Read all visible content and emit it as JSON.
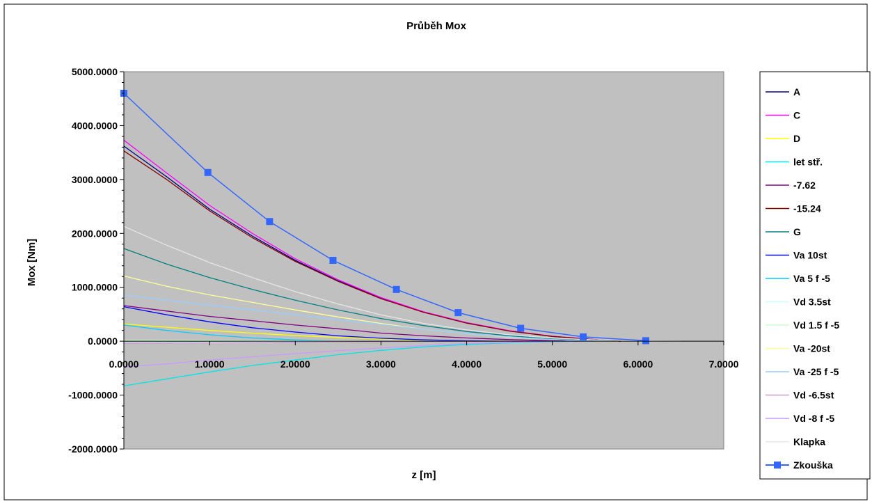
{
  "chart_data": {
    "type": "line",
    "title": "Průběh Mox",
    "xlabel": "z [m]",
    "ylabel": "Mox [Nm]",
    "xlim": [
      0,
      7
    ],
    "ylim": [
      -2000,
      5000
    ],
    "x_ticks": [
      "0.0000",
      "1.0000",
      "2.0000",
      "3.0000",
      "4.0000",
      "5.0000",
      "6.0000",
      "7.0000"
    ],
    "y_ticks": [
      "5000.0000",
      "4000.0000",
      "3000.0000",
      "2000.0000",
      "1000.0000",
      "0.0000",
      "-1000.0000",
      "-2000.0000"
    ],
    "plot_background": "#c0c0c0",
    "grid": false,
    "legend_position": "right",
    "series": [
      {
        "name": "A",
        "color": "#000080",
        "marker": false,
        "points": [
          [
            0,
            3620
          ],
          [
            0.5,
            3050
          ],
          [
            1.0,
            2450
          ],
          [
            1.5,
            1950
          ],
          [
            2.0,
            1500
          ],
          [
            2.5,
            1120
          ],
          [
            3.0,
            800
          ],
          [
            3.5,
            540
          ],
          [
            4.0,
            340
          ],
          [
            4.5,
            190
          ],
          [
            5.0,
            90
          ],
          [
            5.5,
            30
          ],
          [
            5.8,
            0
          ]
        ]
      },
      {
        "name": "C",
        "color": "#ff00ff",
        "marker": false,
        "points": [
          [
            0,
            3730
          ],
          [
            0.5,
            3120
          ],
          [
            1.0,
            2520
          ],
          [
            1.5,
            2000
          ],
          [
            2.0,
            1530
          ],
          [
            2.5,
            1140
          ],
          [
            3.0,
            810
          ],
          [
            3.5,
            545
          ],
          [
            4.0,
            345
          ],
          [
            4.5,
            195
          ],
          [
            5.0,
            92
          ],
          [
            5.5,
            30
          ],
          [
            5.8,
            0
          ]
        ]
      },
      {
        "name": "D",
        "color": "#ffff00",
        "marker": false,
        "points": [
          [
            0,
            320
          ],
          [
            0.5,
            260
          ],
          [
            1.0,
            200
          ],
          [
            1.5,
            150
          ],
          [
            2.0,
            105
          ],
          [
            2.5,
            70
          ],
          [
            3.0,
            40
          ],
          [
            3.5,
            20
          ],
          [
            4.0,
            8
          ],
          [
            4.5,
            0
          ]
        ]
      },
      {
        "name": "let stř.",
        "color": "#00e5e5",
        "marker": false,
        "points": [
          [
            0,
            -830
          ],
          [
            0.5,
            -700
          ],
          [
            1.0,
            -570
          ],
          [
            1.5,
            -450
          ],
          [
            2.0,
            -350
          ],
          [
            2.5,
            -250
          ],
          [
            3.0,
            -170
          ],
          [
            3.5,
            -105
          ],
          [
            4.0,
            -60
          ],
          [
            4.5,
            -30
          ],
          [
            5.0,
            -10
          ],
          [
            5.3,
            0
          ]
        ]
      },
      {
        "name": "-7.62",
        "color": "#800080",
        "marker": false,
        "points": [
          [
            0,
            660
          ],
          [
            0.5,
            560
          ],
          [
            1.0,
            460
          ],
          [
            1.5,
            380
          ],
          [
            2.0,
            300
          ],
          [
            2.5,
            230
          ],
          [
            3.0,
            150
          ],
          [
            3.5,
            100
          ],
          [
            4.0,
            60
          ],
          [
            4.5,
            30
          ],
          [
            5.0,
            10
          ],
          [
            5.3,
            0
          ]
        ]
      },
      {
        "name": "-15.24",
        "color": "#800000",
        "marker": false,
        "points": [
          [
            0,
            3530
          ],
          [
            0.5,
            3000
          ],
          [
            1.0,
            2420
          ],
          [
            1.5,
            1920
          ],
          [
            2.0,
            1480
          ],
          [
            2.5,
            1110
          ],
          [
            3.0,
            790
          ],
          [
            3.5,
            535
          ],
          [
            4.0,
            335
          ],
          [
            4.5,
            188
          ],
          [
            5.0,
            88
          ],
          [
            5.5,
            28
          ],
          [
            5.8,
            0
          ]
        ]
      },
      {
        "name": "G",
        "color": "#008080",
        "marker": false,
        "points": [
          [
            0,
            1720
          ],
          [
            0.5,
            1430
          ],
          [
            1.0,
            1180
          ],
          [
            1.5,
            960
          ],
          [
            2.0,
            760
          ],
          [
            2.5,
            580
          ],
          [
            3.0,
            420
          ],
          [
            3.5,
            290
          ],
          [
            4.0,
            180
          ],
          [
            4.5,
            100
          ],
          [
            5.0,
            40
          ],
          [
            5.5,
            10
          ],
          [
            5.7,
            0
          ]
        ]
      },
      {
        "name": "Va 10st",
        "color": "#0000ff",
        "marker": false,
        "points": [
          [
            0,
            640
          ],
          [
            0.5,
            490
          ],
          [
            1.0,
            360
          ],
          [
            1.5,
            250
          ],
          [
            2.0,
            170
          ],
          [
            2.5,
            100
          ],
          [
            3.0,
            55
          ],
          [
            3.5,
            25
          ],
          [
            4.0,
            8
          ],
          [
            4.5,
            0
          ]
        ]
      },
      {
        "name": "Va 5 f -5",
        "color": "#00ccff",
        "marker": false,
        "points": [
          [
            0,
            300
          ],
          [
            0.5,
            200
          ],
          [
            1.0,
            120
          ],
          [
            1.5,
            60
          ],
          [
            2.0,
            25
          ],
          [
            2.5,
            5
          ],
          [
            3.0,
            0
          ]
        ]
      },
      {
        "name": "Vd 3.5st",
        "color": "#ccffff",
        "marker": false,
        "points": [
          [
            0,
            -30
          ],
          [
            1.0,
            -20
          ],
          [
            2.0,
            -12
          ],
          [
            3.0,
            -6
          ],
          [
            4.0,
            -2
          ],
          [
            5.0,
            0
          ]
        ]
      },
      {
        "name": "Vd 1.5 f -5",
        "color": "#ccffcc",
        "marker": false,
        "points": [
          [
            0,
            20
          ],
          [
            1.0,
            14
          ],
          [
            2.0,
            8
          ],
          [
            3.0,
            4
          ],
          [
            4.0,
            1
          ],
          [
            5.0,
            0
          ]
        ]
      },
      {
        "name": "Va -20st",
        "color": "#ffff99",
        "marker": false,
        "points": [
          [
            0,
            1210
          ],
          [
            0.5,
            1020
          ],
          [
            1.0,
            860
          ],
          [
            1.5,
            720
          ],
          [
            2.0,
            580
          ],
          [
            2.5,
            450
          ],
          [
            3.0,
            330
          ],
          [
            3.5,
            220
          ],
          [
            4.0,
            140
          ],
          [
            4.5,
            75
          ],
          [
            5.0,
            30
          ],
          [
            5.5,
            5
          ],
          [
            5.7,
            0
          ]
        ]
      },
      {
        "name": "Va -25 f -5",
        "color": "#99ccff",
        "marker": false,
        "points": [
          [
            0,
            860
          ],
          [
            0.5,
            760
          ],
          [
            1.0,
            670
          ],
          [
            1.5,
            580
          ],
          [
            2.0,
            490
          ],
          [
            2.5,
            400
          ],
          [
            3.0,
            310
          ],
          [
            3.5,
            220
          ],
          [
            4.0,
            140
          ],
          [
            4.5,
            80
          ],
          [
            5.0,
            30
          ],
          [
            5.5,
            5
          ],
          [
            5.7,
            0
          ]
        ]
      },
      {
        "name": "Vd -6.5st",
        "color": "#cc99cc",
        "marker": false,
        "points": [
          [
            0,
            -40
          ],
          [
            1.0,
            -30
          ],
          [
            2.0,
            -20
          ],
          [
            3.0,
            -10
          ],
          [
            4.0,
            -4
          ],
          [
            5.0,
            0
          ]
        ]
      },
      {
        "name": "Vd -8 f -5",
        "color": "#cc99ff",
        "marker": false,
        "points": [
          [
            0,
            -480
          ],
          [
            0.5,
            -420
          ],
          [
            1.0,
            -350
          ],
          [
            1.5,
            -290
          ],
          [
            2.0,
            -230
          ],
          [
            2.5,
            -175
          ],
          [
            3.0,
            -125
          ],
          [
            3.5,
            -80
          ],
          [
            4.0,
            -45
          ],
          [
            4.5,
            -20
          ],
          [
            5.0,
            -5
          ],
          [
            5.3,
            0
          ]
        ]
      },
      {
        "name": "Klapka",
        "color": "#e6e6e6",
        "marker": false,
        "points": [
          [
            0,
            2130
          ],
          [
            0.5,
            1780
          ],
          [
            1.0,
            1460
          ],
          [
            1.5,
            1180
          ],
          [
            2.0,
            920
          ],
          [
            2.5,
            690
          ],
          [
            3.0,
            490
          ],
          [
            3.5,
            330
          ],
          [
            4.0,
            210
          ],
          [
            4.5,
            120
          ],
          [
            5.0,
            60
          ],
          [
            5.5,
            25
          ],
          [
            6.0,
            10
          ],
          [
            6.5,
            0
          ]
        ]
      },
      {
        "name": "Zkouška",
        "color": "#3366ff",
        "marker": true,
        "points": [
          [
            0,
            4600
          ],
          [
            0.98,
            3130
          ],
          [
            1.7,
            2220
          ],
          [
            2.44,
            1500
          ],
          [
            3.18,
            960
          ],
          [
            3.9,
            530
          ],
          [
            4.63,
            240
          ],
          [
            5.36,
            80
          ],
          [
            6.09,
            10
          ]
        ]
      }
    ]
  }
}
